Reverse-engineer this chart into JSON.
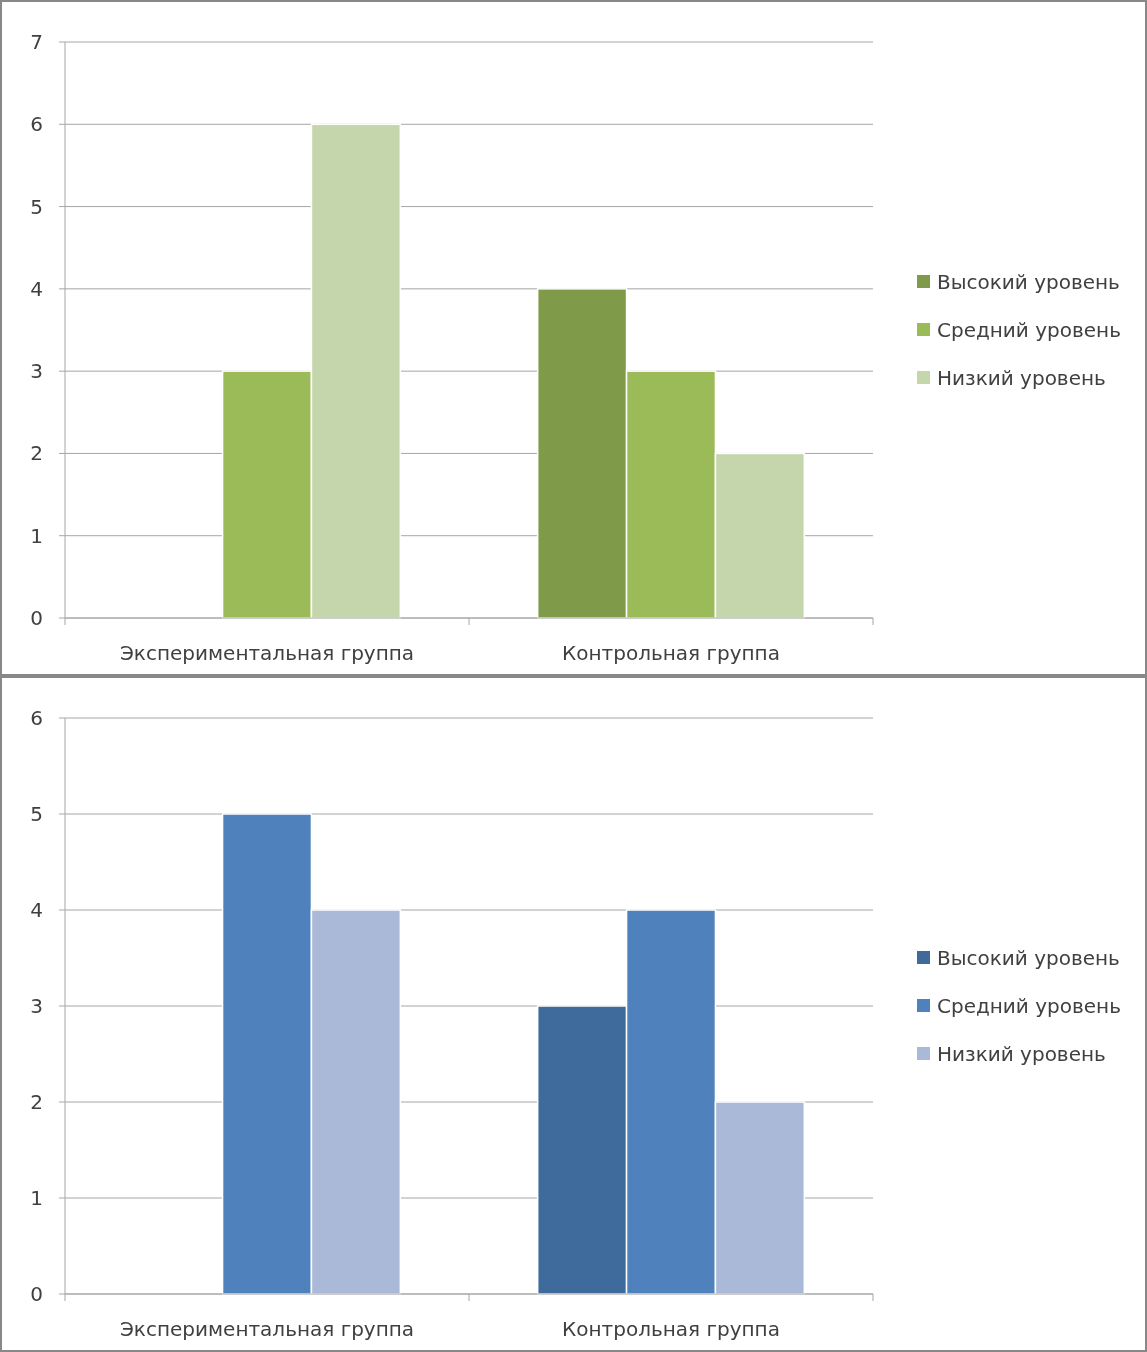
{
  "chart_data": [
    {
      "type": "bar",
      "categories": [
        "Экспериментальная группа",
        "Контрольная группа"
      ],
      "series": [
        {
          "name": "Высокий уровень",
          "color": "#7f9a48",
          "values": [
            0,
            4
          ]
        },
        {
          "name": "Средний уровень",
          "color": "#9bbb59",
          "values": [
            3,
            3
          ]
        },
        {
          "name": "Низкий уровень",
          "color": "#c6d6ac",
          "values": [
            6,
            2
          ]
        }
      ],
      "ylim": [
        0,
        7
      ],
      "yticks": [
        0,
        1,
        2,
        3,
        4,
        5,
        6,
        7
      ],
      "grid": "y",
      "legend": "right"
    },
    {
      "type": "bar",
      "categories": [
        "Экспериментальная группа",
        "Контрольная группа"
      ],
      "series": [
        {
          "name": "Высокий уровень",
          "color": "#3e6a9c",
          "values": [
            0,
            3
          ]
        },
        {
          "name": "Средний уровень",
          "color": "#4f81bd",
          "values": [
            5,
            4
          ]
        },
        {
          "name": "Низкий уровень",
          "color": "#a9b9d7",
          "values": [
            4,
            2
          ]
        }
      ],
      "ylim": [
        0,
        6
      ],
      "yticks": [
        0,
        1,
        2,
        3,
        4,
        5,
        6
      ],
      "grid": "y",
      "legend": "right"
    }
  ]
}
